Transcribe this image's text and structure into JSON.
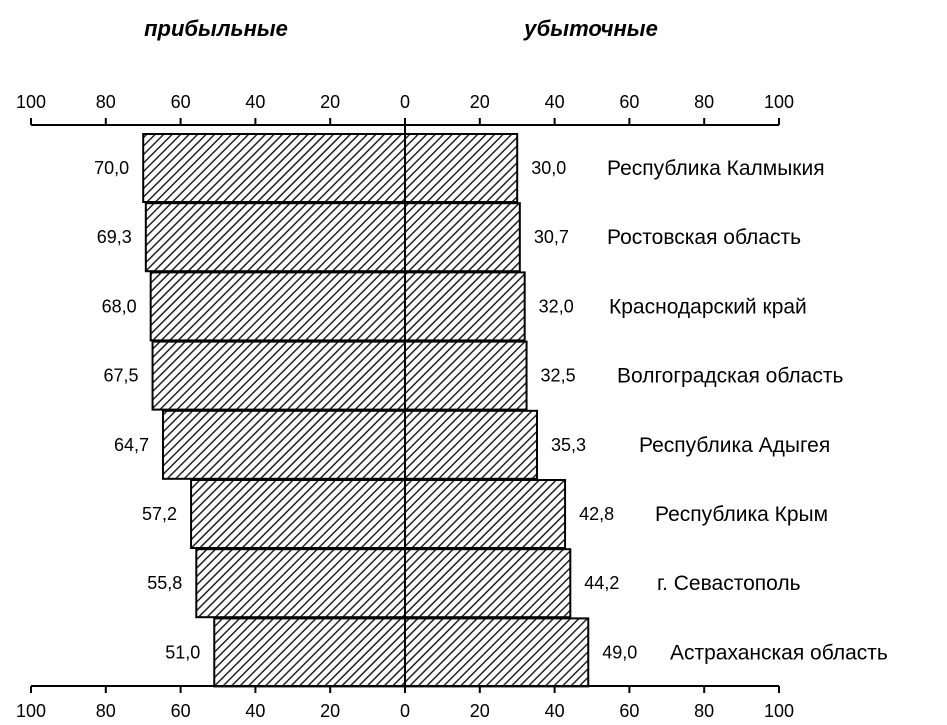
{
  "chart_data": {
    "type": "bar",
    "orientation": "horizontal-diverging",
    "headers": {
      "left": "прибыльные",
      "right": "убыточные"
    },
    "categories": [
      "Республика Калмыкия",
      "Ростовская область",
      "Краснодарский край",
      "Волгоградская область",
      "Республика Адыгея",
      "Республика Крым",
      "г. Севастополь",
      "Астраханская область"
    ],
    "series": [
      {
        "values": [
          70.0,
          69.3,
          68.0,
          67.5,
          64.7,
          57.2,
          55.8,
          51.0
        ],
        "labels": [
          "70,0",
          "69,3",
          "68,0",
          "67,5",
          "64,7",
          "57,2",
          "55,8",
          "51,0"
        ]
      },
      {
        "values": [
          30.0,
          30.7,
          32.0,
          32.5,
          35.3,
          42.8,
          44.2,
          49.0
        ],
        "labels": [
          "30,0",
          "30,7",
          "32,0",
          "32,5",
          "35,3",
          "42,8",
          "44,2",
          "49,0"
        ]
      }
    ],
    "xlim": [
      -100,
      100
    ],
    "tick_labels": [
      "100",
      "80",
      "60",
      "40",
      "20",
      "0",
      "20",
      "40",
      "60",
      "80",
      "100"
    ],
    "grid": false,
    "fill": "diagonal-hatch",
    "colors": {
      "bar_fill": "#ffffff",
      "hatch": "#222222",
      "stroke": "#000000"
    }
  }
}
